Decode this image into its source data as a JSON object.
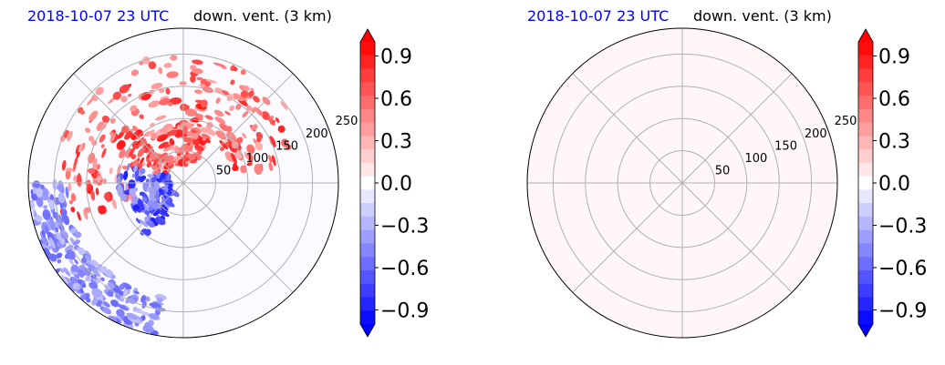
{
  "colors": {
    "positive": "#ff0000",
    "negative": "#0000ff",
    "neutral": "#ffffff",
    "grid": "#b0b0b0",
    "title_time": "#0000ff"
  },
  "panels": [
    {
      "time_label": "2018-10-07 23 UTC",
      "variable_label": "down. vent. (3 km)",
      "fill": "field"
    },
    {
      "time_label": "2018-10-07 23 UTC",
      "variable_label": "down. vent. (3 km)",
      "fill": "uniform-light-positive"
    }
  ],
  "chart_data": [
    {
      "type": "heatmap",
      "projection": "polar",
      "title": "down. vent. (3 km)",
      "subtitle": "2018-10-07 23 UTC",
      "radial_ticks": [
        "50",
        "100",
        "150",
        "200",
        "250"
      ],
      "r_values": [
        50,
        100,
        150,
        200,
        250
      ],
      "r_max": 240,
      "angular_grid_deg": 45,
      "colorbar": {
        "vmin": -1.0,
        "vmax": 1.0,
        "levels": 21,
        "ticks": [
          0.9,
          0.6,
          0.3,
          0.0,
          -0.3,
          -0.6,
          -0.9
        ],
        "tick_labels": [
          "0.9",
          "0.6",
          "0.3",
          "0.0",
          "−0.3",
          "−0.6",
          "−0.9"
        ],
        "extend": "both",
        "cmap": "bwr"
      },
      "features": [
        {
          "kind": "positive band",
          "r_range": [
            80,
            200
          ],
          "theta_range_deg": [
            10,
            200
          ],
          "level": 0.9
        },
        {
          "kind": "positive patches",
          "r_range": [
            30,
            90
          ],
          "theta_range_deg": [
            60,
            160
          ],
          "level": 0.9
        },
        {
          "kind": "negative band",
          "r_range": [
            180,
            240
          ],
          "theta_range_deg": [
            180,
            260
          ],
          "level": -0.6
        },
        {
          "kind": "negative patches",
          "r_range": [
            20,
            100
          ],
          "theta_range_deg": [
            160,
            240
          ],
          "level": -0.9
        }
      ]
    },
    {
      "type": "heatmap",
      "projection": "polar",
      "title": "down. vent. (3 km)",
      "subtitle": "2018-10-07 23 UTC",
      "radial_ticks": [
        "50",
        "100",
        "150",
        "200",
        "250"
      ],
      "r_values": [
        50,
        100,
        150,
        200,
        250
      ],
      "r_max": 240,
      "angular_grid_deg": 45,
      "uniform_value": 0.03,
      "colorbar": {
        "vmin": -1.0,
        "vmax": 1.0,
        "levels": 21,
        "ticks": [
          0.9,
          0.6,
          0.3,
          0.0,
          -0.3,
          -0.6,
          -0.9
        ],
        "tick_labels": [
          "0.9",
          "0.6",
          "0.3",
          "0.0",
          "−0.3",
          "−0.6",
          "−0.9"
        ],
        "extend": "both",
        "cmap": "bwr"
      }
    }
  ]
}
